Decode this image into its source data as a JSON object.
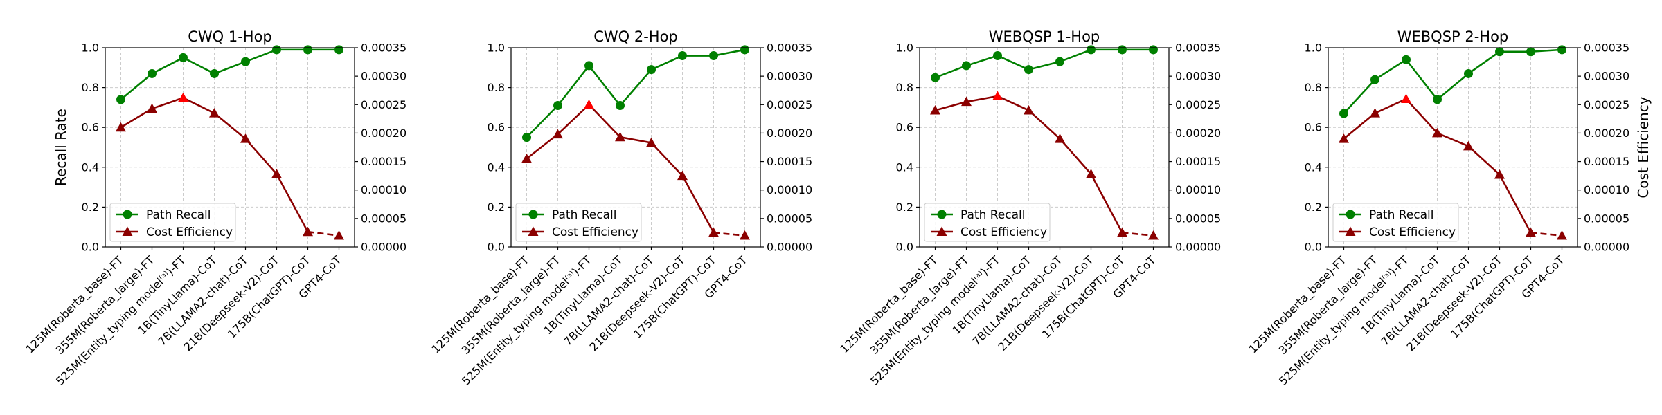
{
  "chart_data": [
    {
      "type": "line",
      "title": "CWQ 1-Hop",
      "categories": [
        "125M(Roberta_base)-FT",
        "355M(Roberta_large)-FT",
        "525M(Entity_typing model⁽ᵃ⁾)-FT",
        "1B(TinyLlama)-CoT",
        "7B(LLAMA2-chat)-CoT",
        "21B(Deepseek-V2)-CoT",
        "175B(ChatGPT)-CoT",
        "GPT4-CoT"
      ],
      "ylabel": "Recall Rate",
      "ylabel_right": "",
      "ylim": [
        0,
        1.0
      ],
      "ylim_right": [
        0,
        0.00035
      ],
      "yticks": [
        "0.0",
        "0.2",
        "0.4",
        "0.6",
        "0.8",
        "1.0"
      ],
      "yticks_right": [
        "0.00000",
        "0.00005",
        "0.00010",
        "0.00015",
        "0.00020",
        "0.00025",
        "0.00030",
        "0.00035"
      ],
      "grid": true,
      "legend_position": "lower-left",
      "series": [
        {
          "name": "Path Recall",
          "axis": "left",
          "color": "#008000",
          "marker": "circle",
          "values": [
            0.74,
            0.87,
            0.95,
            0.87,
            0.93,
            0.99,
            0.99,
            0.99
          ]
        },
        {
          "name": "Cost Efficiency",
          "axis": "right",
          "color": "#8b0000",
          "marker": "triangle",
          "highlight_color": "#ff0000",
          "highlight_index": 2,
          "dashed_from_index": 6,
          "values": [
            0.00021,
            0.000243,
            0.000262,
            0.000235,
            0.00019,
            0.000128,
            2.65e-05,
            2e-05
          ]
        }
      ]
    },
    {
      "type": "line",
      "title": "CWQ 2-Hop",
      "categories": [
        "125M(Roberta_base)-FT",
        "355M(Roberta_large)-FT",
        "525M(Entity_typing model⁽ᵃ⁾)-FT",
        "1B(TinyLlama)-CoT",
        "7B(LLAMA2-chat)-CoT",
        "21B(Deepseek-V2)-CoT",
        "175B(ChatGPT)-CoT",
        "GPT4-CoT"
      ],
      "ylabel": "",
      "ylabel_right": "",
      "ylim": [
        0,
        1.0
      ],
      "ylim_right": [
        0,
        0.00035
      ],
      "yticks": [
        "0.0",
        "0.2",
        "0.4",
        "0.6",
        "0.8",
        "1.0"
      ],
      "yticks_right": [
        "0.00000",
        "0.00005",
        "0.00010",
        "0.00015",
        "0.00020",
        "0.00025",
        "0.00030",
        "0.00035"
      ],
      "grid": true,
      "legend_position": "lower-left",
      "series": [
        {
          "name": "Path Recall",
          "axis": "left",
          "color": "#008000",
          "marker": "circle",
          "values": [
            0.55,
            0.71,
            0.91,
            0.71,
            0.89,
            0.96,
            0.96,
            0.99
          ]
        },
        {
          "name": "Cost Efficiency",
          "axis": "right",
          "color": "#8b0000",
          "marker": "triangle",
          "highlight_color": "#ff0000",
          "highlight_index": 2,
          "dashed_from_index": 6,
          "values": [
            0.000155,
            0.000198,
            0.00025,
            0.000193,
            0.000183,
            0.000125,
            2.5e-05,
            2e-05
          ]
        }
      ]
    },
    {
      "type": "line",
      "title": "WEBQSP 1-Hop",
      "categories": [
        "125M(Roberta_base)-FT",
        "355M(Roberta_large)-FT",
        "525M(Entity_typing model⁽ᵃ⁾)-FT",
        "1B(TinyLlama)-CoT",
        "7B(LLAMA2-chat)-CoT",
        "21B(Deepseek-V2)-CoT",
        "175B(ChatGPT)-CoT",
        "GPT4-CoT"
      ],
      "ylabel": "",
      "ylabel_right": "",
      "ylim": [
        0,
        1.0
      ],
      "ylim_right": [
        0,
        0.00035
      ],
      "yticks": [
        "0.0",
        "0.2",
        "0.4",
        "0.6",
        "0.8",
        "1.0"
      ],
      "yticks_right": [
        "0.00000",
        "0.00005",
        "0.00010",
        "0.00015",
        "0.00020",
        "0.00025",
        "0.00030",
        "0.00035"
      ],
      "grid": true,
      "legend_position": "lower-left",
      "series": [
        {
          "name": "Path Recall",
          "axis": "left",
          "color": "#008000",
          "marker": "circle",
          "values": [
            0.85,
            0.91,
            0.96,
            0.89,
            0.93,
            0.99,
            0.99,
            0.99
          ]
        },
        {
          "name": "Cost Efficiency",
          "axis": "right",
          "color": "#8b0000",
          "marker": "triangle",
          "highlight_color": "#ff0000",
          "highlight_index": 2,
          "dashed_from_index": 6,
          "values": [
            0.00024,
            0.000255,
            0.000265,
            0.00024,
            0.00019,
            0.000128,
            2.5e-05,
            2e-05
          ]
        }
      ]
    },
    {
      "type": "line",
      "title": "WEBQSP 2-Hop",
      "categories": [
        "125M(Roberta_base)-FT",
        "355M(Roberta_large)-FT",
        "525M(Entity_typing model⁽ᵃ⁾)-FT",
        "1B(TinyLlama)-CoT",
        "7B(LLAMA2-chat)-CoT",
        "21B(Deepseek-V2)-CoT",
        "175B(ChatGPT)-CoT",
        "GPT4-CoT"
      ],
      "ylabel": "",
      "ylabel_right": "Cost Efficiency",
      "ylim": [
        0,
        1.0
      ],
      "ylim_right": [
        0,
        0.00035
      ],
      "yticks": [
        "0.0",
        "0.2",
        "0.4",
        "0.6",
        "0.8",
        "1.0"
      ],
      "yticks_right": [
        "0.00000",
        "0.00005",
        "0.00010",
        "0.00015",
        "0.00020",
        "0.00025",
        "0.00030",
        "0.00035"
      ],
      "grid": true,
      "legend_position": "lower-left",
      "series": [
        {
          "name": "Path Recall",
          "axis": "left",
          "color": "#008000",
          "marker": "circle",
          "values": [
            0.67,
            0.84,
            0.94,
            0.74,
            0.87,
            0.98,
            0.98,
            0.99
          ]
        },
        {
          "name": "Cost Efficiency",
          "axis": "right",
          "color": "#8b0000",
          "marker": "triangle",
          "highlight_color": "#ff0000",
          "highlight_index": 2,
          "dashed_from_index": 6,
          "values": [
            0.00019,
            0.000235,
            0.00026,
            0.0002,
            0.000177,
            0.000127,
            2.5e-05,
            2e-05
          ]
        }
      ]
    }
  ]
}
